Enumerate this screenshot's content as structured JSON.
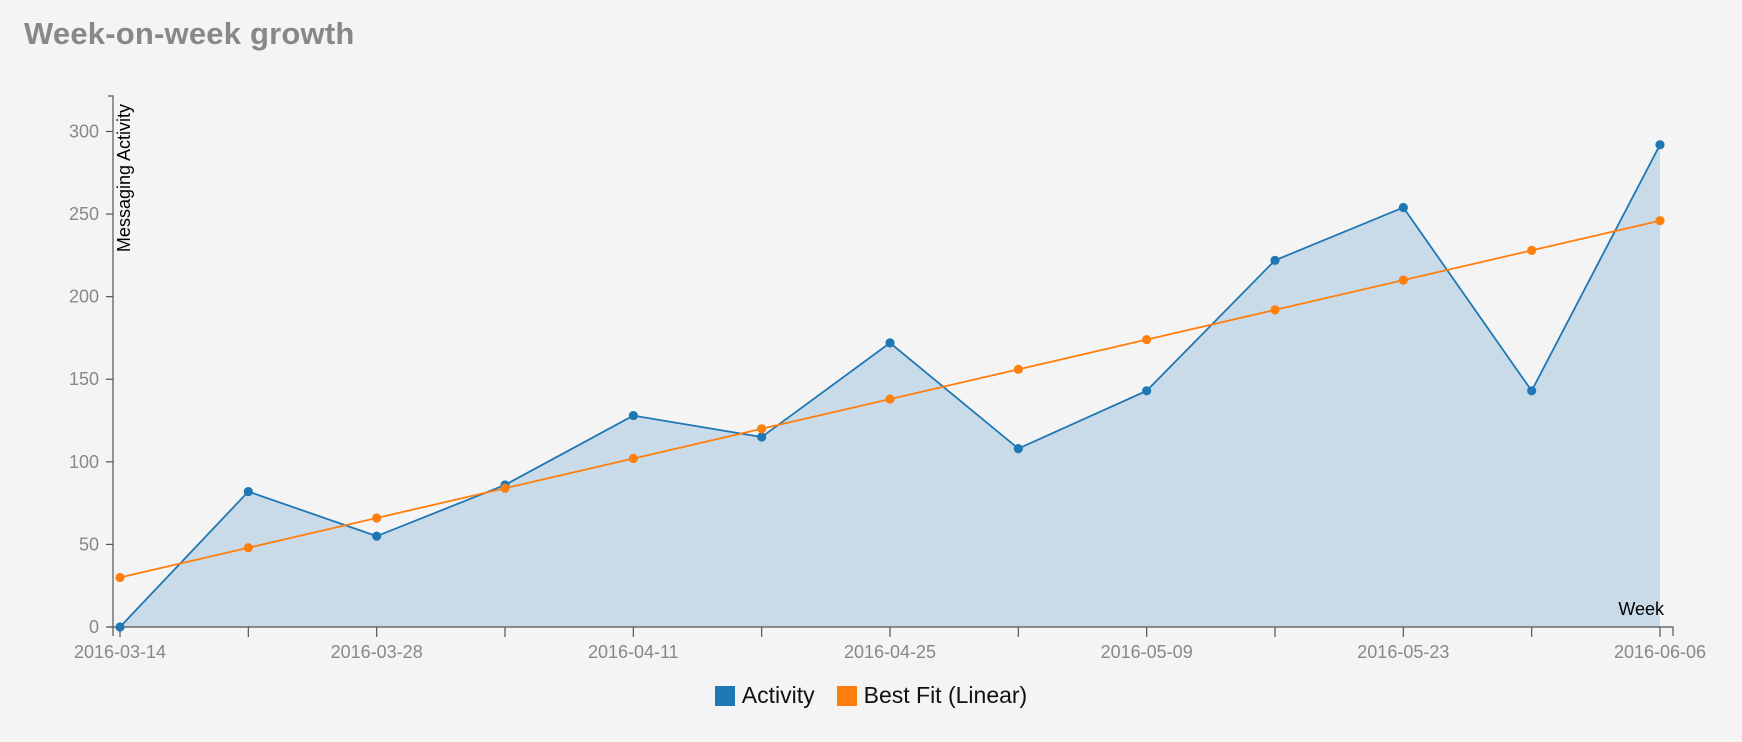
{
  "title": "Week-on-week growth",
  "chart_data": {
    "type": "line",
    "x": [
      "2016-03-14",
      "2016-03-21",
      "2016-03-28",
      "2016-04-04",
      "2016-04-11",
      "2016-04-18",
      "2016-04-25",
      "2016-05-02",
      "2016-05-09",
      "2016-05-16",
      "2016-05-23",
      "2016-05-30",
      "2016-06-06"
    ],
    "x_tick_labels": [
      "2016-03-14",
      "",
      "2016-03-28",
      "",
      "2016-04-11",
      "",
      "2016-04-25",
      "",
      "2016-05-09",
      "",
      "2016-05-23",
      "",
      "2016-06-06"
    ],
    "series": [
      {
        "name": "Activity",
        "color": "#1f77b4",
        "fill": "#c9dbe8",
        "area": true,
        "values": [
          0,
          82,
          55,
          86,
          128,
          115,
          172,
          108,
          143,
          222,
          254,
          143,
          292
        ]
      },
      {
        "name": "Best Fit (Linear)",
        "color": "#ff7f0e",
        "area": false,
        "values": [
          30,
          48,
          66,
          84,
          102,
          120,
          138,
          156,
          174,
          192,
          210,
          228,
          246
        ]
      }
    ],
    "xlabel": "Week",
    "ylabel": "Messaging Activity",
    "ylim": [
      0,
      320
    ],
    "yticks": [
      0,
      50,
      100,
      150,
      200,
      250,
      300
    ],
    "grid": false,
    "legend": "bottom-center"
  }
}
